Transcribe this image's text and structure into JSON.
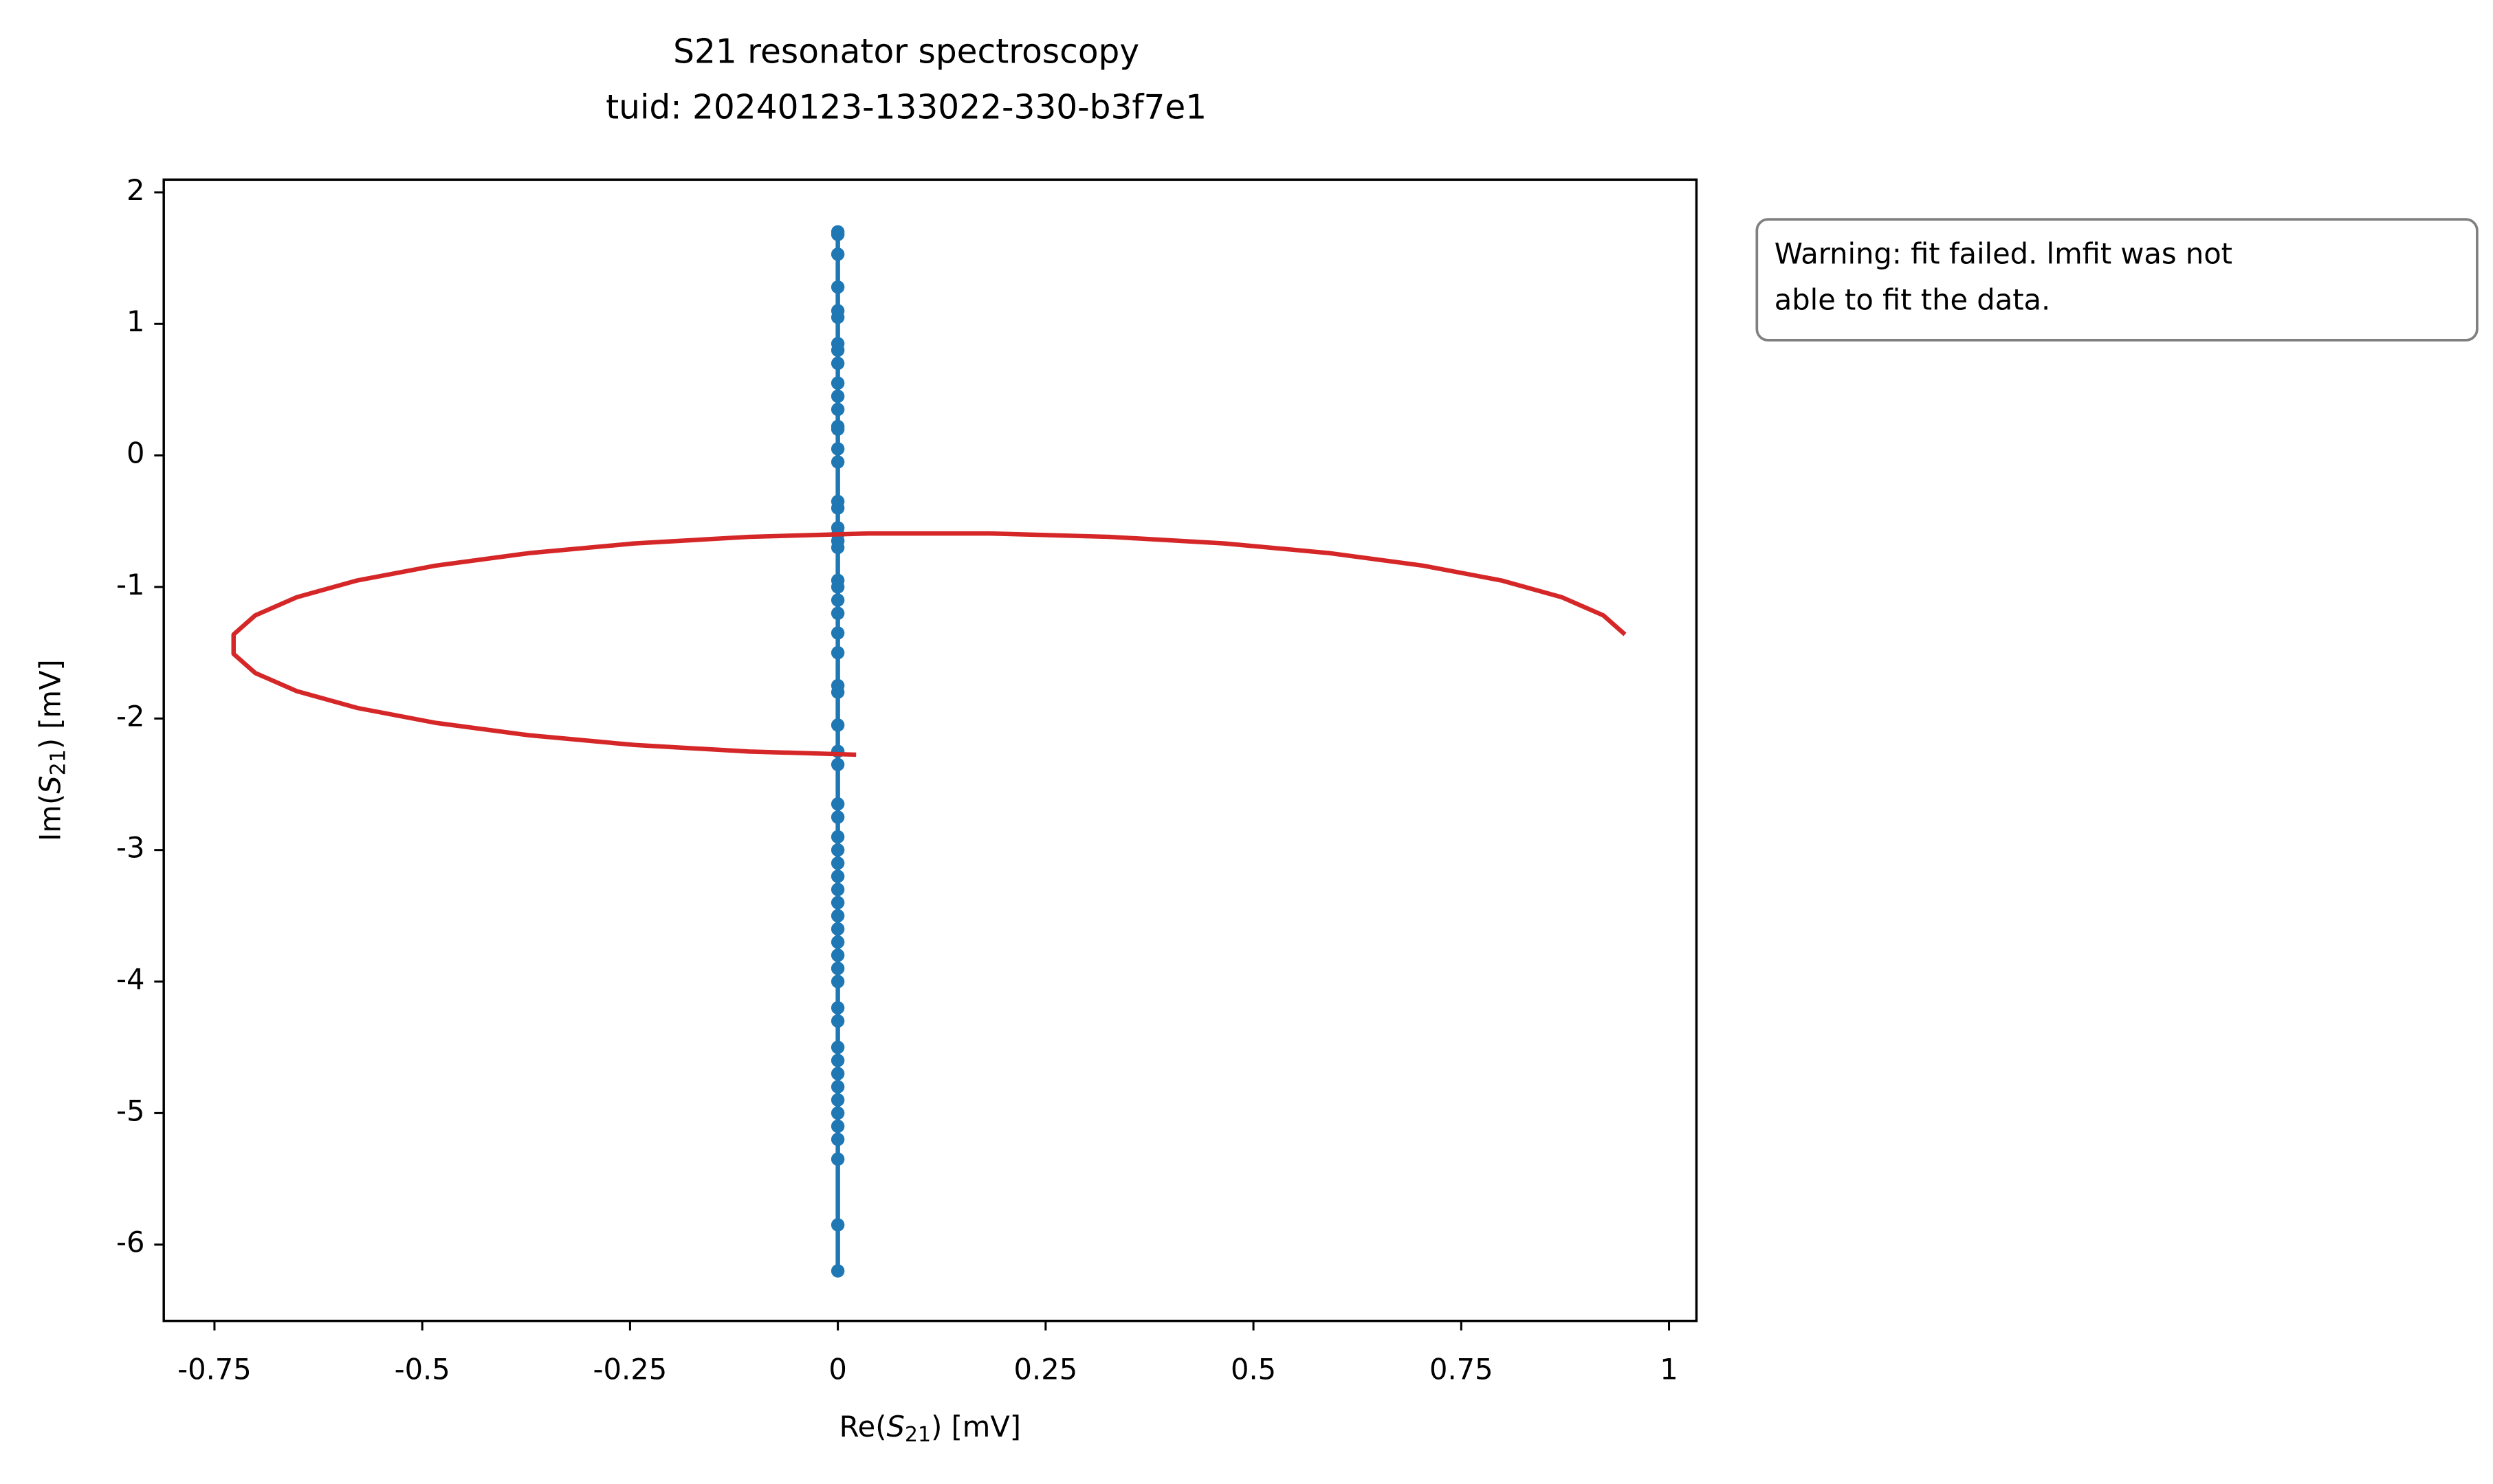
{
  "chart_data": {
    "type": "line",
    "title": "S21 resonator spectroscopy",
    "subtitle": "tuid: 20240123-133022-330-b3f7e1",
    "xlabel": [
      "Re(",
      "S",
      "21",
      ") [mV]"
    ],
    "ylabel": [
      "Im(",
      "S",
      "21",
      ") [mV]"
    ],
    "annotation": [
      "Warning: fit failed. lmfit was not",
      "able to fit the data."
    ],
    "xlim": [
      -0.811,
      1.033
    ],
    "ylim": [
      -6.58,
      2.097
    ],
    "xticks": [
      -0.75,
      -0.5,
      -0.25,
      0,
      0.25,
      0.5,
      0.75,
      1
    ],
    "yticks": [
      2,
      1,
      0,
      -1,
      -2,
      -3,
      -4,
      -5,
      -6
    ],
    "series": [
      {
        "color": "#1f77b4",
        "markers": true,
        "x": [
          0,
          0,
          0,
          0,
          0,
          0,
          0,
          0,
          0,
          0,
          0,
          0,
          0,
          0,
          0,
          0,
          0,
          0,
          0,
          0,
          0,
          0,
          0,
          0,
          0,
          0,
          0,
          0,
          0,
          0,
          0,
          0,
          0,
          0,
          0,
          0,
          0,
          0,
          0,
          0,
          0,
          0,
          0,
          0,
          0,
          0,
          0,
          0,
          0,
          0,
          0,
          0,
          0,
          0,
          0,
          0,
          0,
          0,
          0,
          0
        ],
        "values": [
          1.7,
          1.68,
          1.53,
          1.28,
          1.1,
          1.05,
          0.85,
          0.8,
          0.7,
          0.55,
          0.45,
          0.35,
          0.22,
          0.2,
          0.05,
          -0.05,
          -0.35,
          -0.4,
          -0.55,
          -0.6,
          -0.65,
          -0.7,
          -0.95,
          -1.0,
          -1.1,
          -1.2,
          -1.35,
          -1.5,
          -1.75,
          -1.8,
          -2.05,
          -2.25,
          -2.35,
          -2.65,
          -2.75,
          -2.9,
          -3.0,
          -3.1,
          -3.2,
          -3.3,
          -3.4,
          -3.5,
          -3.6,
          -3.7,
          -3.8,
          -3.9,
          -4.0,
          -4.2,
          -4.3,
          -4.5,
          -4.6,
          -4.7,
          -4.8,
          -4.9,
          -5.0,
          -5.1,
          -5.2,
          -5.35,
          -5.85,
          -6.2
        ]
      },
      {
        "color": "#d62728",
        "markers": false,
        "x": [
          0.022,
          -0.107,
          -0.245,
          -0.372,
          -0.484,
          -0.578,
          -0.651,
          -0.701,
          -0.727,
          -0.727,
          -0.701,
          -0.651,
          -0.578,
          -0.484,
          -0.372,
          -0.245,
          -0.107,
          0.037,
          0.183,
          0.327,
          0.465,
          0.592,
          0.704,
          0.798,
          0.871,
          0.921,
          0.947
        ],
        "values": [
          -2.275,
          -2.251,
          -2.201,
          -2.127,
          -2.033,
          -1.92,
          -1.792,
          -1.654,
          -1.509,
          -1.361,
          -1.216,
          -1.078,
          -0.95,
          -0.838,
          -0.743,
          -0.669,
          -0.619,
          -0.593,
          -0.593,
          -0.619,
          -0.669,
          -0.743,
          -0.838,
          -0.95,
          -1.078,
          -1.216,
          -1.361
        ]
      }
    ]
  }
}
